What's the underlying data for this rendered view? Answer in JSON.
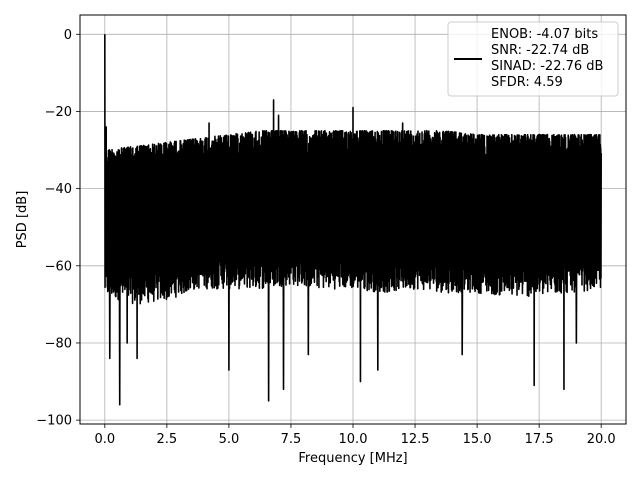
{
  "chart_data": {
    "type": "line",
    "title": "",
    "xlabel": "Frequency [MHz]",
    "ylabel": "PSD [dB]",
    "xlim": [
      -1,
      21
    ],
    "ylim": [
      -101,
      5
    ],
    "xticks": [
      0,
      2.5,
      5,
      7.5,
      10,
      12.5,
      15,
      17.5,
      20
    ],
    "xtick_labels": [
      "0.0",
      "2.5",
      "5.0",
      "7.5",
      "10.0",
      "12.5",
      "15.0",
      "17.5",
      "20.0"
    ],
    "yticks": [
      0,
      -20,
      -40,
      -60,
      -80,
      -100
    ],
    "ytick_labels": [
      "0",
      "−20",
      "−40",
      "−60",
      "−80",
      "−100"
    ],
    "grid": true,
    "legend_position": "top-right",
    "series": [
      {
        "color": "#000000",
        "x_range": [
          0,
          20
        ],
        "upper_envelope_db": [
          -30,
          -29,
          -28,
          -27,
          -26,
          -25,
          -25,
          -25,
          -25,
          -25,
          -25,
          -25,
          -26,
          -26,
          -26,
          -26,
          -26
        ],
        "lower_envelope_db": [
          -68,
          -70,
          -69,
          -66,
          -66,
          -66,
          -65,
          -66,
          -66,
          -67,
          -66,
          -67,
          -67,
          -68,
          -68,
          -67,
          -66
        ],
        "peaks": [
          {
            "x": 0.0,
            "y": 0
          },
          {
            "x": 0.05,
            "y": -24
          },
          {
            "x": 6.8,
            "y": -17
          },
          {
            "x": 7.0,
            "y": -21
          },
          {
            "x": 10.0,
            "y": -19
          },
          {
            "x": 4.2,
            "y": -23
          },
          {
            "x": 12.0,
            "y": -23
          }
        ],
        "dips": [
          {
            "x": 0.2,
            "y": -84
          },
          {
            "x": 0.6,
            "y": -96
          },
          {
            "x": 0.9,
            "y": -80
          },
          {
            "x": 1.3,
            "y": -84
          },
          {
            "x": 5.0,
            "y": -87
          },
          {
            "x": 6.6,
            "y": -95
          },
          {
            "x": 7.2,
            "y": -92
          },
          {
            "x": 8.2,
            "y": -83
          },
          {
            "x": 10.3,
            "y": -90
          },
          {
            "x": 11.0,
            "y": -87
          },
          {
            "x": 14.4,
            "y": -83
          },
          {
            "x": 17.3,
            "y": -91
          },
          {
            "x": 18.5,
            "y": -92
          },
          {
            "x": 19.0,
            "y": -80
          }
        ]
      }
    ],
    "legend": {
      "lines": [
        "ENOB: -4.07 bits",
        "SNR: -22.74 dB",
        "SINAD: -22.76 dB",
        "SFDR: 4.59"
      ]
    }
  }
}
